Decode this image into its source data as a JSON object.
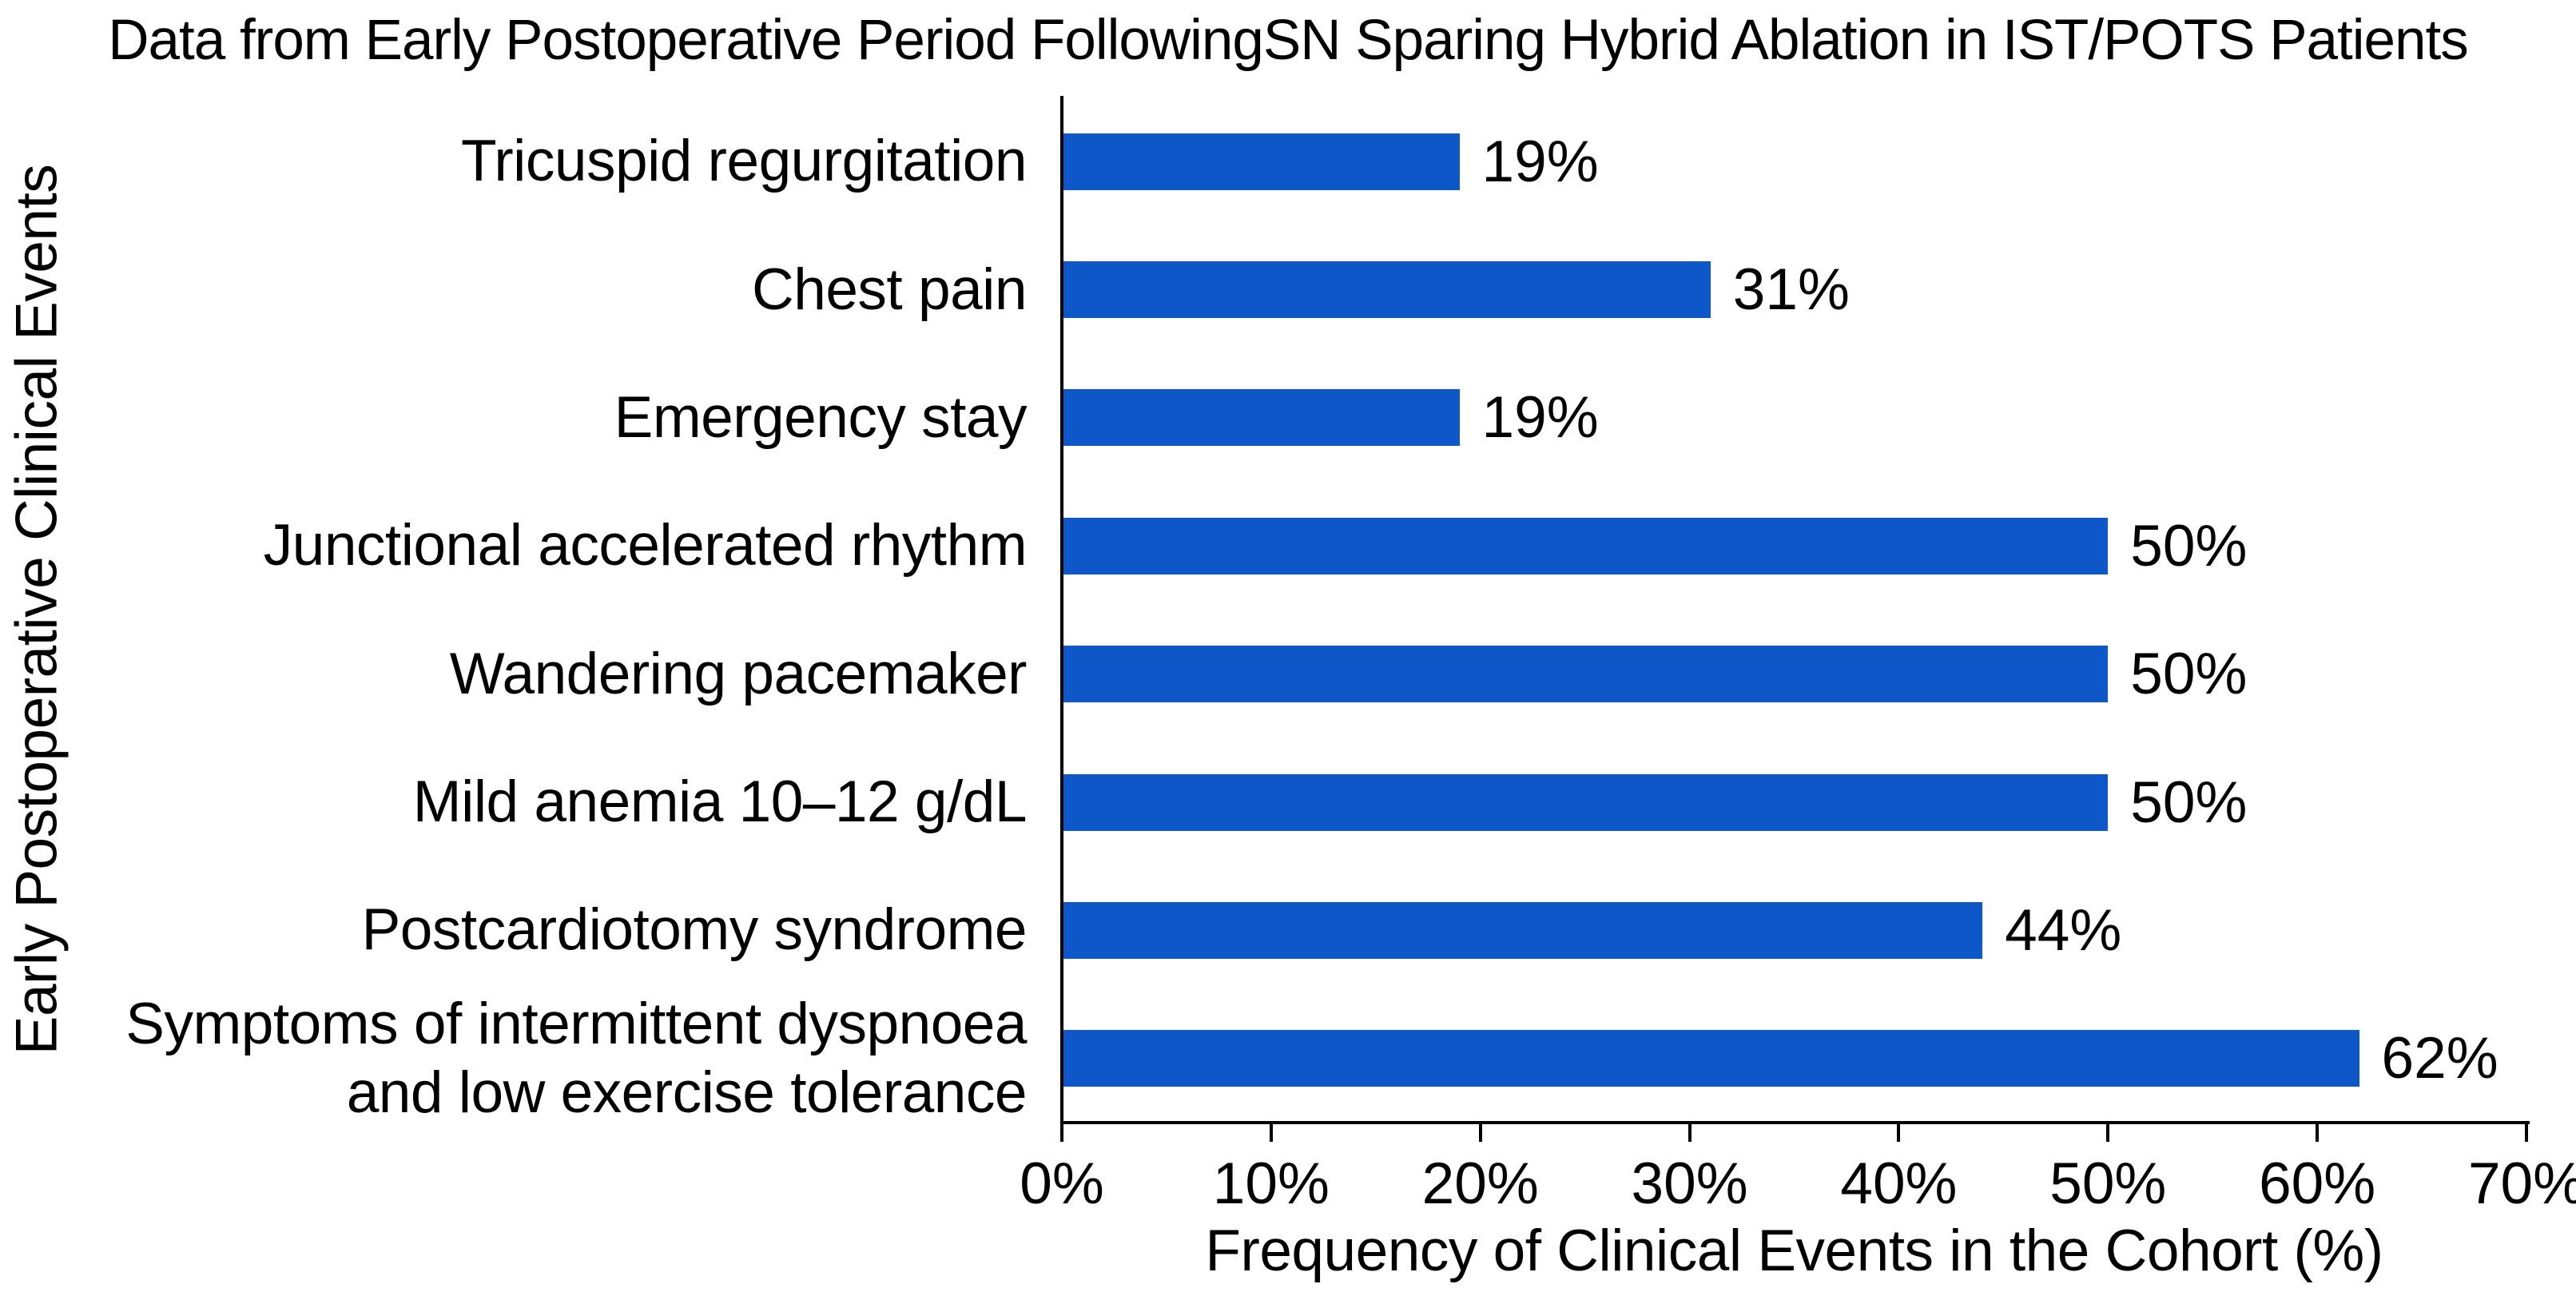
{
  "title": "Data from Early Postoperative Period FollowingSN Sparing Hybrid Ablation in IST/POTS Patients",
  "chart_data": {
    "type": "bar",
    "orientation": "horizontal",
    "title": "Data from Early Postoperative Period FollowingSN Sparing Hybrid Ablation in IST/POTS Patients",
    "xlabel": "Frequency of Clinical Events in the Cohort (%)",
    "ylabel": "Early Postoperative Clinical Events",
    "categories": [
      "Tricuspid regurgitation",
      "Chest pain",
      "Emergency stay",
      "Junctional accelerated rhythm",
      "Wandering pacemaker",
      "Mild anemia 10–12 g/dL",
      "Postcardiotomy syndrome",
      "Symptoms of intermittent dyspnoea\nand low exercise tolerance"
    ],
    "values": [
      19,
      31,
      19,
      50,
      50,
      50,
      44,
      62
    ],
    "value_labels": [
      "19%",
      "31%",
      "19%",
      "50%",
      "50%",
      "50%",
      "44%",
      "62%"
    ],
    "xlim": [
      0,
      70
    ],
    "xtick_values": [
      0,
      10,
      20,
      30,
      40,
      50,
      60,
      70
    ],
    "xtick_labels": [
      "0%",
      "10%",
      "20%",
      "30%",
      "40%",
      "50%",
      "60%",
      "70%"
    ],
    "bar_color": "#0e57c8",
    "axis_color": "#000000",
    "text_color": "#000000",
    "grid": false,
    "legend": null
  }
}
